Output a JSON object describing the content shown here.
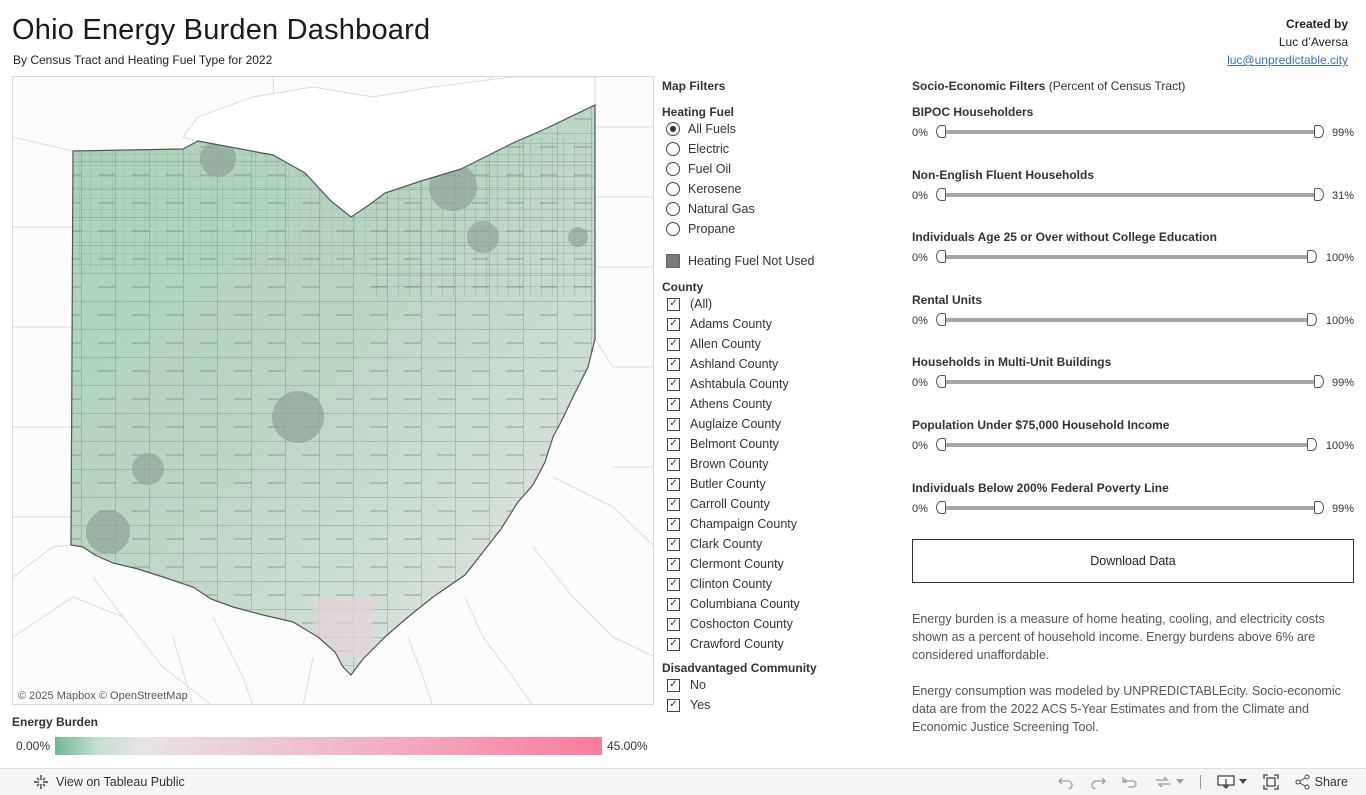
{
  "header": {
    "title": "Ohio Energy Burden Dashboard",
    "subtitle": "By Census Tract and Heating Fuel Type for 2022"
  },
  "credits": {
    "created_by": "Created by",
    "author": "Luc d’Aversa",
    "email": "luc@unpredictable.city"
  },
  "map": {
    "attribution": "© 2025 Mapbox  © OpenStreetMap"
  },
  "legend": {
    "title": "Energy Burden",
    "min": "0.00%",
    "max": "45.00%",
    "colors": [
      "#6fb894",
      "#e6e3e4",
      "#fb7b9d"
    ]
  },
  "filters": {
    "heading": "Map Filters",
    "heating_fuel": {
      "label": "Heating Fuel",
      "options": [
        "All Fuels",
        "Electric",
        "Fuel Oil",
        "Kerosene",
        "Natural Gas",
        "Propane"
      ],
      "selected": "All Fuels"
    },
    "not_used_label": "Heating Fuel Not Used",
    "county": {
      "label": "County",
      "items": [
        "(All)",
        "Adams County",
        "Allen County",
        "Ashland County",
        "Ashtabula County",
        "Athens County",
        "Auglaize County",
        "Belmont County",
        "Brown County",
        "Butler County",
        "Carroll County",
        "Champaign County",
        "Clark County",
        "Clermont County",
        "Clinton County",
        "Columbiana County",
        "Coshocton County",
        "Crawford County"
      ]
    },
    "disadvantaged": {
      "label": "Disadvantaged Community",
      "items": [
        "No",
        "Yes"
      ]
    }
  },
  "socio": {
    "heading_bold": "Socio-Economic Filters",
    "heading_rest": " (Percent of Census Tract)",
    "sliders": [
      {
        "label": "BIPOC Householders",
        "min": "0%",
        "max": "99%"
      },
      {
        "label": "Non-English Fluent Households",
        "min": "0%",
        "max": "31%"
      },
      {
        "label": "Individuals Age 25 or Over without College Education",
        "min": "0%",
        "max": "100%"
      },
      {
        "label": "Rental Units",
        "min": "0%",
        "max": "100%"
      },
      {
        "label": "Households in Multi-Unit Buildings",
        "min": "0%",
        "max": "99%"
      },
      {
        "label": "Population Under $75,000 Household Income",
        "min": "0%",
        "max": "100%"
      },
      {
        "label": "Individuals Below 200% Federal Poverty Line",
        "min": "0%",
        "max": "99%"
      }
    ]
  },
  "download_label": "Download Data",
  "notes": {
    "p1": "Energy burden is a measure of home heating, cooling, and electricity costs shown as a percent of household income. Energy burdens above 6% are considered unaffordable.",
    "p2": "Energy consumption was modeled by UNPREDICTABLEcity. Socio-economic data are from the 2022 ACS 5-Year Estimates and from the Climate and Economic Justice Screening Tool."
  },
  "toolbar": {
    "view_label": "View on Tableau Public",
    "share_label": "Share"
  }
}
